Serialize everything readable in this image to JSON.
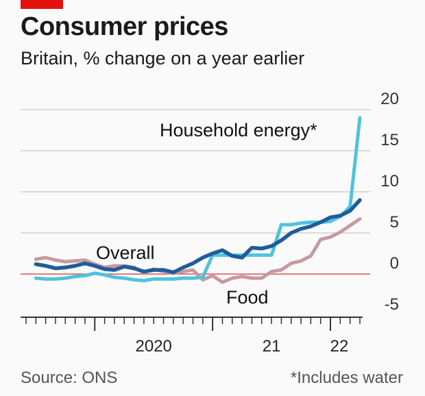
{
  "header": {
    "title": "Consumer prices",
    "subtitle": "Britain, % change on a year earlier"
  },
  "footer": {
    "source": "Source: ONS",
    "note": "*Includes water"
  },
  "colors": {
    "brand_red": "#e3120b",
    "overall": "#1f5c99",
    "household_energy": "#4fc3dd",
    "food": "#c79aa0",
    "zero_line": "#d9534f",
    "grid": "#cfcfcf",
    "axis": "#333333"
  },
  "chart_data": {
    "type": "line",
    "title": "Consumer prices",
    "subtitle": "Britain, % change on a year earlier",
    "xlabel": "",
    "ylabel": "",
    "ylim": [
      -5,
      20
    ],
    "xlim": [
      "2019-06",
      "2022-04"
    ],
    "y_ticks": [
      "20",
      "15",
      "10",
      "5",
      "0",
      "-5"
    ],
    "x_tick_labels": [
      {
        "label": "2020",
        "date": "2020-01"
      },
      {
        "label": "21",
        "date": "2021-01"
      },
      {
        "label": "22",
        "date": "2022-01"
      }
    ],
    "grid": true,
    "y_axis_side": "right",
    "series": [
      {
        "name": "Food",
        "points": [
          [
            "2019-07",
            1.8
          ],
          [
            "2019-08",
            2.0
          ],
          [
            "2019-09",
            1.7
          ],
          [
            "2019-10",
            1.5
          ],
          [
            "2019-11",
            1.6
          ],
          [
            "2019-12",
            1.7
          ],
          [
            "2020-01",
            1.2
          ],
          [
            "2020-02",
            0.8
          ],
          [
            "2020-03",
            1.0
          ],
          [
            "2020-04",
            1.0
          ],
          [
            "2020-05",
            0.8
          ],
          [
            "2020-06",
            0.2
          ],
          [
            "2020-07",
            0.6
          ],
          [
            "2020-08",
            0.3
          ],
          [
            "2020-09",
            0.1
          ],
          [
            "2020-10",
            0.3
          ],
          [
            "2020-11",
            0.5
          ],
          [
            "2020-12",
            -0.7
          ],
          [
            "2021-01",
            -0.2
          ],
          [
            "2021-02",
            -1.0
          ],
          [
            "2021-03",
            -0.5
          ],
          [
            "2021-04",
            -0.3
          ],
          [
            "2021-05",
            -0.5
          ],
          [
            "2021-06",
            -0.5
          ],
          [
            "2021-07",
            0.3
          ],
          [
            "2021-08",
            0.5
          ],
          [
            "2021-09",
            1.3
          ],
          [
            "2021-10",
            1.6
          ],
          [
            "2021-11",
            2.2
          ],
          [
            "2021-12",
            4.2
          ],
          [
            "2022-01",
            4.5
          ],
          [
            "2022-02",
            5.1
          ],
          [
            "2022-03",
            5.9
          ],
          [
            "2022-04",
            6.7
          ]
        ]
      },
      {
        "name": "Household energy*",
        "points": [
          [
            "2019-07",
            -0.5
          ],
          [
            "2019-08",
            -0.6
          ],
          [
            "2019-09",
            -0.6
          ],
          [
            "2019-10",
            -0.5
          ],
          [
            "2019-11",
            -0.3
          ],
          [
            "2019-12",
            -0.2
          ],
          [
            "2020-01",
            0.1
          ],
          [
            "2020-02",
            -0.1
          ],
          [
            "2020-03",
            -0.4
          ],
          [
            "2020-04",
            -0.5
          ],
          [
            "2020-05",
            -0.7
          ],
          [
            "2020-06",
            -0.8
          ],
          [
            "2020-07",
            -0.6
          ],
          [
            "2020-08",
            -0.6
          ],
          [
            "2020-09",
            -0.6
          ],
          [
            "2020-10",
            -0.5
          ],
          [
            "2020-11",
            -0.5
          ],
          [
            "2020-12",
            -0.4
          ],
          [
            "2021-01",
            2.3
          ],
          [
            "2021-02",
            2.3
          ],
          [
            "2021-03",
            2.3
          ],
          [
            "2021-04",
            2.3
          ],
          [
            "2021-05",
            2.3
          ],
          [
            "2021-06",
            2.3
          ],
          [
            "2021-07",
            2.3
          ],
          [
            "2021-08",
            6.0
          ],
          [
            "2021-09",
            6.0
          ],
          [
            "2021-10",
            6.2
          ],
          [
            "2021-11",
            6.3
          ],
          [
            "2021-12",
            6.3
          ],
          [
            "2022-01",
            6.4
          ],
          [
            "2022-02",
            7.0
          ],
          [
            "2022-03",
            8.2
          ],
          [
            "2022-04",
            19.0
          ]
        ]
      },
      {
        "name": "Overall",
        "points": [
          [
            "2019-07",
            1.2
          ],
          [
            "2019-08",
            1.0
          ],
          [
            "2019-09",
            0.7
          ],
          [
            "2019-10",
            0.8
          ],
          [
            "2019-11",
            1.0
          ],
          [
            "2019-12",
            1.3
          ],
          [
            "2020-01",
            1.0
          ],
          [
            "2020-02",
            0.6
          ],
          [
            "2020-03",
            0.5
          ],
          [
            "2020-04",
            0.9
          ],
          [
            "2020-05",
            0.7
          ],
          [
            "2020-06",
            0.3
          ],
          [
            "2020-07",
            0.5
          ],
          [
            "2020-08",
            0.5
          ],
          [
            "2020-09",
            0.2
          ],
          [
            "2020-10",
            0.8
          ],
          [
            "2020-11",
            1.3
          ],
          [
            "2020-12",
            2.0
          ],
          [
            "2021-01",
            2.5
          ],
          [
            "2021-02",
            2.9
          ],
          [
            "2021-03",
            2.2
          ],
          [
            "2021-04",
            2.0
          ],
          [
            "2021-05",
            3.2
          ],
          [
            "2021-06",
            3.1
          ],
          [
            "2021-07",
            3.4
          ],
          [
            "2021-08",
            4.1
          ],
          [
            "2021-09",
            5.0
          ],
          [
            "2021-10",
            5.5
          ],
          [
            "2021-11",
            5.8
          ],
          [
            "2021-12",
            6.3
          ],
          [
            "2022-01",
            6.9
          ],
          [
            "2022-02",
            7.1
          ],
          [
            "2022-03",
            7.7
          ],
          [
            "2022-04",
            9.0
          ]
        ]
      }
    ]
  }
}
